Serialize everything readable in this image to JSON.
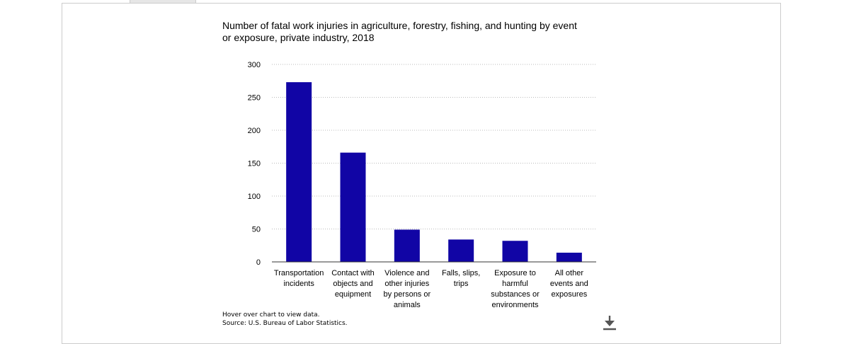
{
  "chart_data": {
    "type": "bar",
    "title_lines": [
      "Number of fatal work injuries in agriculture, forestry, fishing, and hunting by event",
      "or exposure, private industry, 2018"
    ],
    "categories": [
      [
        "Transportation",
        "incidents"
      ],
      [
        "Contact with",
        "objects and",
        "equipment"
      ],
      [
        "Violence and",
        "other injuries",
        "by persons or",
        "animals"
      ],
      [
        "Falls, slips,",
        "trips"
      ],
      [
        "Exposure to",
        "harmful",
        "substances or",
        "environments"
      ],
      [
        "All other",
        "events and",
        "exposures"
      ]
    ],
    "values": [
      273,
      166,
      49,
      34,
      32,
      14
    ],
    "ylim": [
      0,
      300
    ],
    "yticks": [
      0,
      50,
      100,
      150,
      200,
      250,
      300
    ],
    "bar_color": "#1105a5",
    "grid": true,
    "xlabel": "",
    "ylabel": ""
  },
  "footer": {
    "hover_note": "Hover over chart to view data.",
    "source": "Source: U.S. Bureau of Labor Statistics."
  },
  "download": {
    "icon": "download-icon"
  }
}
